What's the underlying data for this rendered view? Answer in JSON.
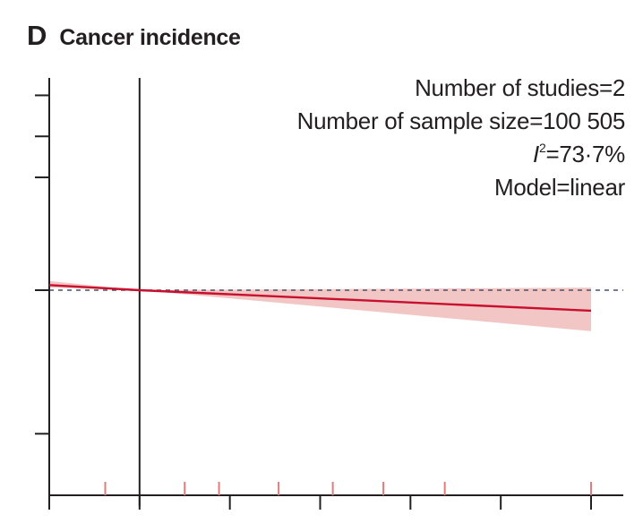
{
  "panel": {
    "letter": "D",
    "title": "Cancer incidence"
  },
  "stats": {
    "studies": "Number of studies=2",
    "sample_size": "Number of sample size=100 505",
    "i2_symbol": "I",
    "i2_superscript": "2",
    "i2_value": "=73·7%",
    "model": "Model=linear"
  },
  "chart_data": {
    "type": "line",
    "title": "Cancer incidence",
    "xlabel": "",
    "ylabel": "",
    "xlim": [
      0,
      6
    ],
    "ylim": [
      0,
      8
    ],
    "reference_y": 4,
    "reference_x": 1,
    "x_ticks": [
      0,
      1,
      2,
      3,
      4,
      5,
      6
    ],
    "y_ticks": [
      1.2,
      4,
      6.2,
      7,
      7.8
    ],
    "series": [
      {
        "x": [
          0,
          1,
          6
        ],
        "y": [
          4.1,
          4,
          3.6
        ],
        "ci_lower": [
          4.05,
          4,
          3.2
        ],
        "ci_upper": [
          4.18,
          4,
          4.05
        ]
      }
    ],
    "rug_x": [
      0.62,
      1.5,
      1.88,
      2.54,
      3.14,
      3.7,
      4.38,
      6
    ]
  }
}
